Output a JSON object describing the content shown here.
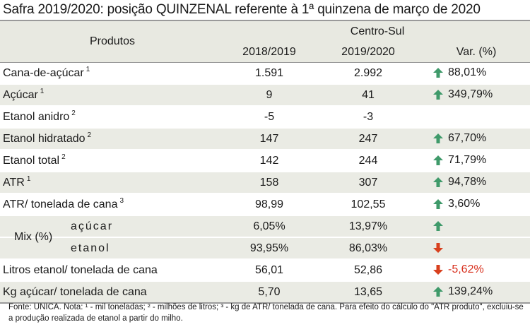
{
  "title": "Safra 2019/2020: posição QUINZENAL referente à 1ª quinzena de março de 2020",
  "header": {
    "products": "Produtos",
    "region": "Centro-Sul",
    "col1": "2018/2019",
    "col2": "2019/2020",
    "col3": "Var. (%)"
  },
  "rows": [
    {
      "label": "Cana-de-açúcar",
      "sup": "1",
      "v1": "1.591",
      "v2": "2.992",
      "trend": "up",
      "var": "88,01%"
    },
    {
      "label": "Açúcar",
      "sup": "1",
      "v1": "9",
      "v2": "41",
      "trend": "up",
      "var": "349,79%"
    },
    {
      "label": "Etanol anidro",
      "sup": "2",
      "v1": "-5",
      "v2": "-3",
      "trend": "",
      "var": ""
    },
    {
      "label": "Etanol hidratado",
      "sup": "2",
      "v1": "147",
      "v2": "247",
      "trend": "up",
      "var": "67,70%"
    },
    {
      "label": "Etanol total",
      "sup": "2",
      "v1": "142",
      "v2": "244",
      "trend": "up",
      "var": "71,79%"
    },
    {
      "label": "ATR",
      "sup": "1",
      "v1": "158",
      "v2": "307",
      "trend": "up",
      "var": "94,78%"
    },
    {
      "label": "ATR/ tonelada de cana",
      "sup": "3",
      "v1": "98,99",
      "v2": "102,55",
      "trend": "up",
      "var": "3,60%"
    }
  ],
  "mix": {
    "label": "Mix (%)",
    "acucar": {
      "label": "açúcar",
      "v1": "6,05%",
      "v2": "13,97%",
      "trend": "up"
    },
    "etanol": {
      "label": "etanol",
      "v1": "93,95%",
      "v2": "86,03%",
      "trend": "down"
    }
  },
  "rows2": [
    {
      "label": "Litros etanol/ tonelada de cana",
      "v1": "56,01",
      "v2": "52,86",
      "trend": "down",
      "var": "-5,62%"
    },
    {
      "label": "Kg açúcar/ tonelada de cana",
      "v1": "5,70",
      "v2": "13,65",
      "trend": "up",
      "var": "139,24%"
    }
  ],
  "footer": "Fonte: UNICA. Nota: ¹ - mil toneladas; ² - milhões de litros; ³ - kg de ATR/ tonelada de cana. Para efeito do cálculo do \"ATR produto\", excluiu-se a produção realizada de etanol a partir do milho.",
  "colors": {
    "up": "#3f9a6a",
    "down": "#d8401e",
    "negative_text": "#d8301e",
    "header_bg": "#e8e9e1",
    "row_shade": "#eaebe4"
  },
  "icons": {
    "up": "arrow-up-icon",
    "down": "arrow-down-icon"
  }
}
